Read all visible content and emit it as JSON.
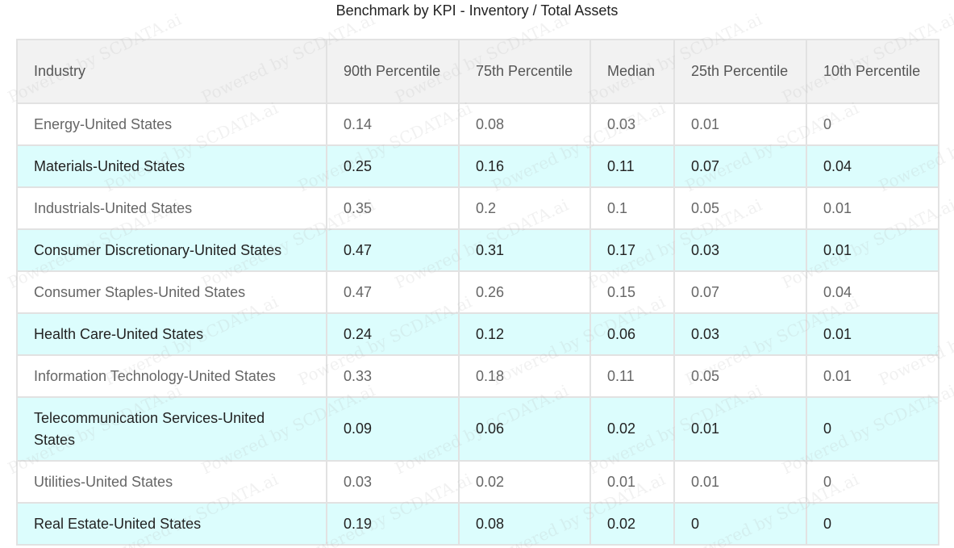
{
  "title": "Benchmark by KPI - Inventory / Total Assets",
  "watermark": "Powered by SCDATA.ai",
  "chart_data": {
    "type": "table",
    "title": "Benchmark by KPI - Inventory / Total Assets",
    "columns": [
      "Industry",
      "90th Percentile",
      "75th Percentile",
      "Median",
      "25th Percentile",
      "10th Percentile"
    ],
    "rows": [
      {
        "industry": "Energy-United States",
        "values": [
          "0.14",
          "0.08",
          "0.03",
          "0.01",
          "0"
        ]
      },
      {
        "industry": "Materials-United States",
        "values": [
          "0.25",
          "0.16",
          "0.11",
          "0.07",
          "0.04"
        ]
      },
      {
        "industry": "Industrials-United States",
        "values": [
          "0.35",
          "0.2",
          "0.1",
          "0.05",
          "0.01"
        ]
      },
      {
        "industry": "Consumer Discretionary-United States",
        "values": [
          "0.47",
          "0.31",
          "0.17",
          "0.03",
          "0.01"
        ]
      },
      {
        "industry": "Consumer Staples-United States",
        "values": [
          "0.47",
          "0.26",
          "0.15",
          "0.07",
          "0.04"
        ]
      },
      {
        "industry": "Health Care-United States",
        "values": [
          "0.24",
          "0.12",
          "0.06",
          "0.03",
          "0.01"
        ]
      },
      {
        "industry": "Information Technology-United States",
        "values": [
          "0.33",
          "0.18",
          "0.11",
          "0.05",
          "0.01"
        ]
      },
      {
        "industry": "Telecommunication Services-United States",
        "values": [
          "0.09",
          "0.06",
          "0.02",
          "0.01",
          "0"
        ]
      },
      {
        "industry": "Utilities-United States",
        "values": [
          "0.03",
          "0.02",
          "0.01",
          "0.01",
          "0"
        ]
      },
      {
        "industry": "Real Estate-United States",
        "values": [
          "0.19",
          "0.08",
          "0.02",
          "0",
          "0"
        ]
      }
    ],
    "colors": {
      "header_bg": "#f2f2f2",
      "alt_row_bg": "#dcfdfd",
      "row_bg": "#ffffff",
      "border": "#e2e2e2"
    }
  }
}
